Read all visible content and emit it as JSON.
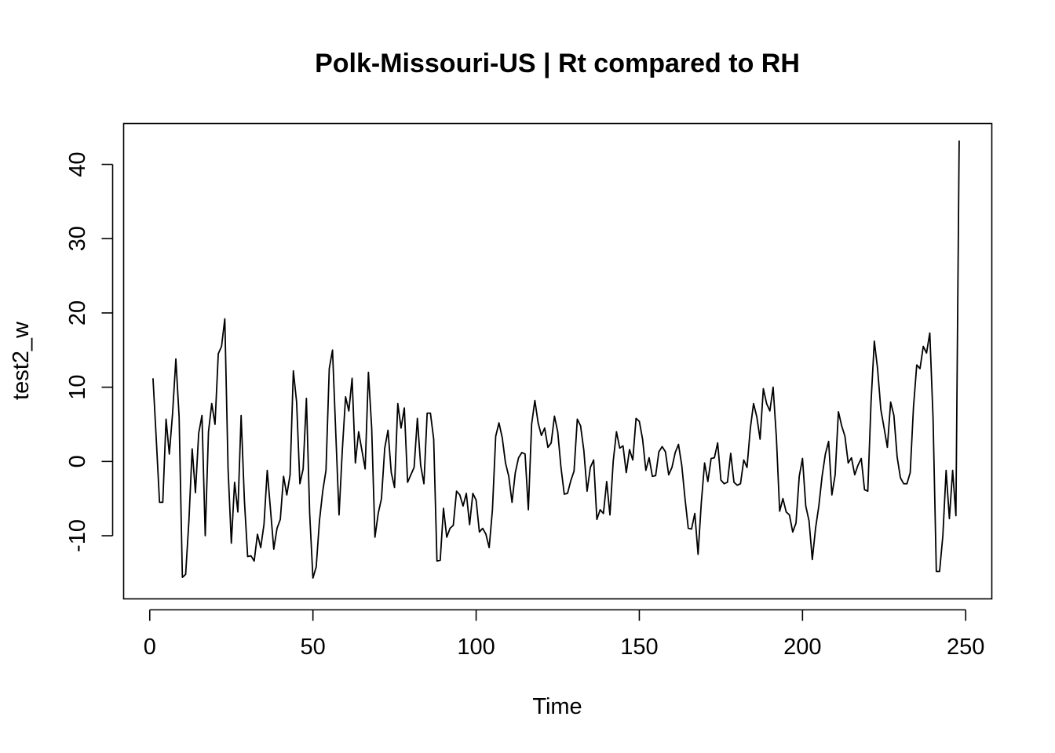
{
  "chart_data": {
    "type": "line",
    "title": "Polk-Missouri-US | Rt compared to RH",
    "xlabel": "Time",
    "ylabel": "test2_w",
    "xlim": [
      -8,
      258
    ],
    "ylim": [
      -18.5,
      45.5
    ],
    "xticks": [
      0,
      50,
      100,
      150,
      200,
      250
    ],
    "yticks": [
      -10,
      0,
      10,
      20,
      30,
      40
    ],
    "grid": false,
    "legend": "none",
    "series": [
      {
        "color": "#000000",
        "x": [
          1,
          2,
          3,
          4,
          5,
          6,
          7,
          8,
          9,
          10,
          11,
          12,
          13,
          14,
          15,
          16,
          17,
          18,
          19,
          20,
          21,
          22,
          23,
          24,
          25,
          26,
          27,
          28,
          29,
          30,
          31,
          32,
          33,
          34,
          35,
          36,
          37,
          38,
          39,
          40,
          41,
          42,
          43,
          44,
          45,
          46,
          47,
          48,
          49,
          50,
          51,
          52,
          53,
          54,
          55,
          56,
          57,
          58,
          59,
          60,
          61,
          62,
          63,
          64,
          65,
          66,
          67,
          68,
          69,
          70,
          71,
          72,
          73,
          74,
          75,
          76,
          77,
          78,
          79,
          80,
          81,
          82,
          83,
          84,
          85,
          86,
          87,
          88,
          89,
          90,
          91,
          92,
          93,
          94,
          95,
          96,
          97,
          98,
          99,
          100,
          101,
          102,
          103,
          104,
          105,
          106,
          107,
          108,
          109,
          110,
          111,
          112,
          113,
          114,
          115,
          116,
          117,
          118,
          119,
          120,
          121,
          122,
          123,
          124,
          125,
          126,
          127,
          128,
          129,
          130,
          131,
          132,
          133,
          134,
          135,
          136,
          137,
          138,
          139,
          140,
          141,
          142,
          143,
          144,
          145,
          146,
          147,
          148,
          149,
          150,
          151,
          152,
          153,
          154,
          155,
          156,
          157,
          158,
          159,
          160,
          161,
          162,
          163,
          164,
          165,
          166,
          167,
          168,
          169,
          170,
          171,
          172,
          173,
          174,
          175,
          176,
          177,
          178,
          179,
          180,
          181,
          182,
          183,
          184,
          185,
          186,
          187,
          188,
          189,
          190,
          191,
          192,
          193,
          194,
          195,
          196,
          197,
          198,
          199,
          200,
          201,
          202,
          203,
          204,
          205,
          206,
          207,
          208,
          209,
          210,
          211,
          212,
          213,
          214,
          215,
          216,
          217,
          218,
          219,
          220,
          221,
          222,
          223,
          224,
          225,
          226,
          227,
          228,
          229,
          230,
          231,
          232,
          233,
          234,
          235,
          236,
          237,
          238,
          239,
          240,
          241,
          242,
          243,
          244,
          245,
          246,
          247,
          248
        ],
        "y": [
          11.2,
          3,
          -5.5,
          -5.5,
          5.7,
          1,
          6.5,
          13.8,
          6,
          -15.6,
          -15.2,
          -8,
          1.7,
          -4.2,
          3.8,
          6.2,
          -10,
          4,
          7.8,
          5,
          14.5,
          15.5,
          19.2,
          -1,
          -11,
          -2.8,
          -6.8,
          6.2,
          -5.2,
          -12.8,
          -12.7,
          -13.4,
          -9.8,
          -11.6,
          -8.5,
          -1.2,
          -6.5,
          -11.8,
          -9,
          -7.8,
          -2,
          -4.5,
          -1.8,
          12.2,
          8,
          -3,
          -1,
          8.5,
          -7,
          -15.7,
          -14.2,
          -8,
          -4,
          -1.2,
          12.5,
          15,
          3.8,
          -7.2,
          1.5,
          8.7,
          6.8,
          11.2,
          -0.2,
          4,
          1.5,
          -1,
          12,
          4.5,
          -10.2,
          -7,
          -5,
          1.8,
          4.2,
          -1.5,
          -3.5,
          7.8,
          4.5,
          7.2,
          -2.8,
          -1.8,
          -0.8,
          5.8,
          -0.5,
          -3,
          6.5,
          6.5,
          3,
          -13.4,
          -13.3,
          -6.3,
          -10.2,
          -9,
          -8.6,
          -4,
          -4.5,
          -6,
          -4.3,
          -8.5,
          -4.3,
          -5.2,
          -9.5,
          -9,
          -9.8,
          -11.6,
          -6.5,
          3.4,
          5.2,
          3.2,
          -0.2,
          -2,
          -5.5,
          -1.5,
          0.5,
          1.2,
          1,
          -6.5,
          5,
          8.2,
          5.2,
          3.5,
          4.5,
          1.9,
          2.5,
          6.1,
          4,
          -0.8,
          -4.4,
          -4.3,
          -2.6,
          -1.3,
          5.7,
          4.8,
          1.5,
          -4,
          -0.8,
          0.2,
          -7.8,
          -6.5,
          -7,
          -2.7,
          -7.2,
          0,
          4,
          1.8,
          2.1,
          -1.5,
          1.6,
          0.2,
          5.8,
          5.4,
          3,
          -1.2,
          0.5,
          -2,
          -1.9,
          1.3,
          2,
          1.3,
          -1.8,
          -0.8,
          1.2,
          2.3,
          -0.5,
          -5,
          -9,
          -9.1,
          -7,
          -12.5,
          -5.5,
          -0.2,
          -2.7,
          0.4,
          0.5,
          2.5,
          -2.5,
          -3,
          -2.8,
          1.1,
          -2.8,
          -3.2,
          -3,
          0.2,
          -0.8,
          4.4,
          7.8,
          6,
          3,
          9.8,
          7.8,
          6.8,
          10,
          3.2,
          -6.7,
          -5,
          -6.8,
          -7.2,
          -9.5,
          -8.3,
          -2,
          0.4,
          -6,
          -8,
          -13.2,
          -9,
          -6,
          -2,
          1,
          2.7,
          -4.5,
          -1.8,
          6.7,
          4.8,
          3.4,
          -0.2,
          0.5,
          -1.8,
          -0.5,
          0.4,
          -3.8,
          -4,
          8,
          16.2,
          12.5,
          7,
          4.5,
          1.9,
          8,
          6.2,
          0.6,
          -2.2,
          -3,
          -3,
          -1.5,
          7.3,
          13,
          12.5,
          15.5,
          14.6,
          17.3,
          5.8,
          -14.8,
          -14.8,
          -10,
          -1.2,
          -7.7,
          -1.2,
          -7.3,
          43.2
        ]
      }
    ]
  }
}
